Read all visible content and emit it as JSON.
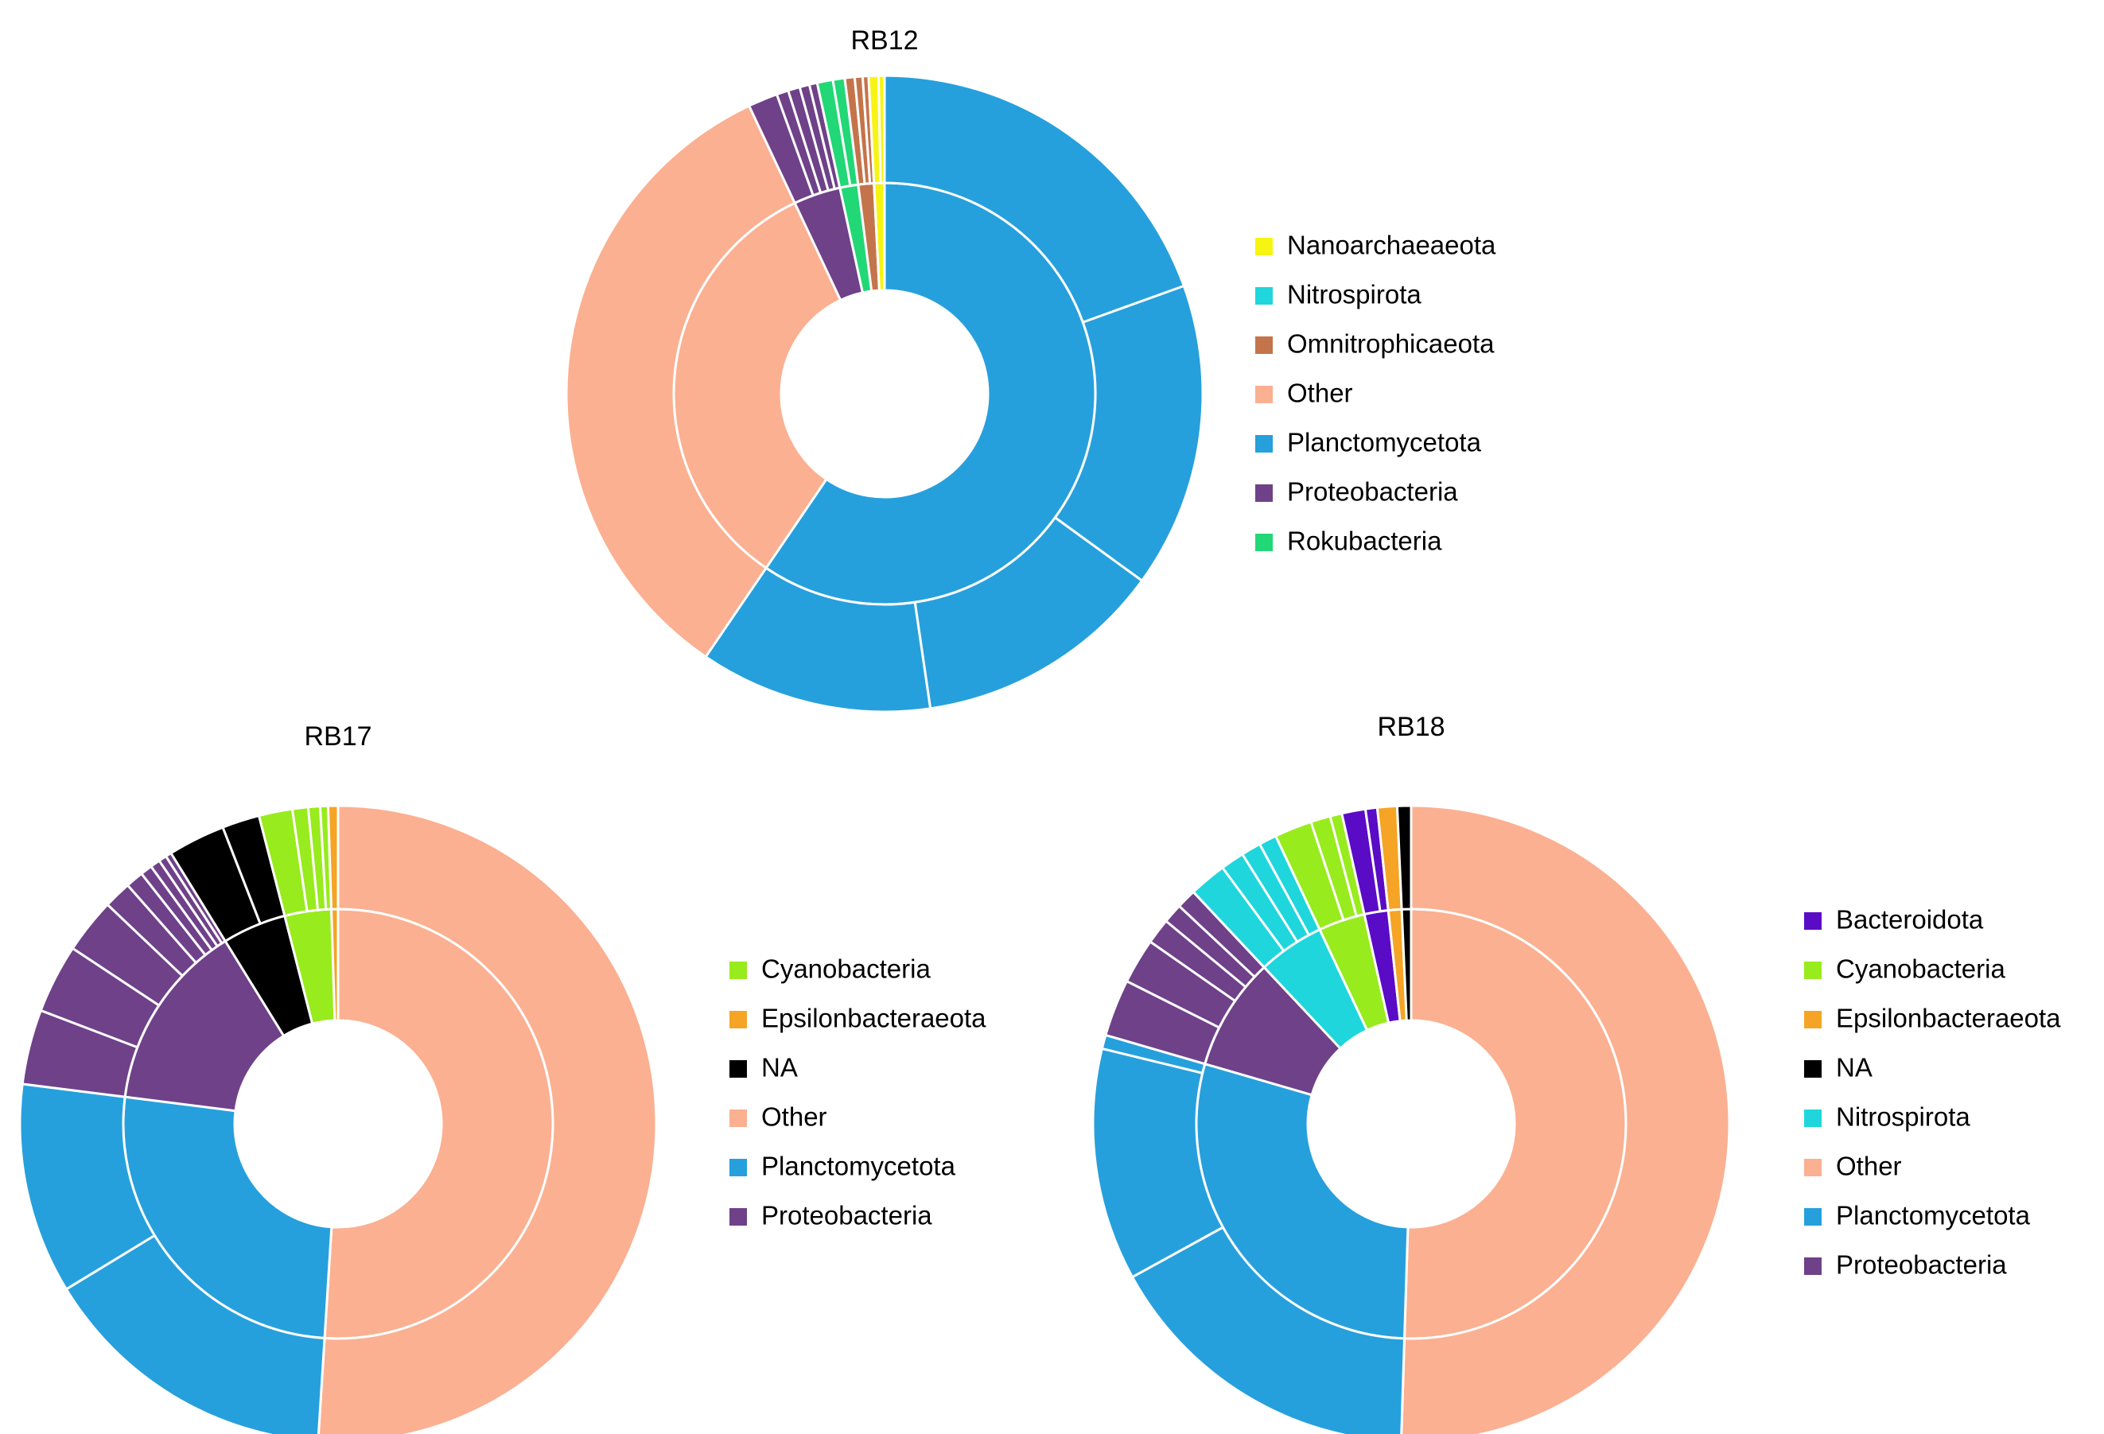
{
  "colors": {
    "Nanoarchaeaeota": "#f7f414",
    "Nitrospirota": "#1fd6dc",
    "Omnitrophicaeota": "#c4744a",
    "Other": "#fbb091",
    "Planctomycetota": "#26a0dc",
    "Proteobacteria": "#6f4189",
    "Rokubacteria": "#22d776",
    "Cyanobacteria": "#98eb1d",
    "Epsilonbacteraeota": "#f5a425",
    "NA": "#000000",
    "Bacteroidota": "#5a0bc6"
  },
  "chart_data": [
    {
      "type": "sunburst",
      "title": "RB12",
      "legend": [
        "Nanoarchaeaeota",
        "Nitrospirota",
        "Omnitrophicaeota",
        "Other",
        "Planctomycetota",
        "Proteobacteria",
        "Rokubacteria"
      ],
      "inner": [
        {
          "group": "Planctomycetota",
          "value": 59.5
        },
        {
          "group": "Other",
          "value": 33.5
        },
        {
          "group": "Proteobacteria",
          "value": 3.6
        },
        {
          "group": "Rokubacteria",
          "value": 1.4
        },
        {
          "group": "Omnitrophicaeota",
          "value": 1.2
        },
        {
          "group": "Nanoarchaeaeota",
          "value": 0.8
        }
      ],
      "outer": [
        {
          "group": "Planctomycetota",
          "value": 19.5
        },
        {
          "group": "Planctomycetota",
          "value": 15.5
        },
        {
          "group": "Planctomycetota",
          "value": 12.7
        },
        {
          "group": "Planctomycetota",
          "value": 11.8
        },
        {
          "group": "Other",
          "value": 33.5
        },
        {
          "group": "Proteobacteria",
          "value": 1.5
        },
        {
          "group": "Proteobacteria",
          "value": 0.6
        },
        {
          "group": "Proteobacteria",
          "value": 0.6
        },
        {
          "group": "Proteobacteria",
          "value": 0.5
        },
        {
          "group": "Proteobacteria",
          "value": 0.4
        },
        {
          "group": "Rokubacteria",
          "value": 0.8
        },
        {
          "group": "Rokubacteria",
          "value": 0.6
        },
        {
          "group": "Omnitrophicaeota",
          "value": 0.5
        },
        {
          "group": "Omnitrophicaeota",
          "value": 0.4
        },
        {
          "group": "Omnitrophicaeota",
          "value": 0.3
        },
        {
          "group": "Nanoarchaeaeota",
          "value": 0.5
        },
        {
          "group": "Nanoarchaeaeota",
          "value": 0.3
        }
      ]
    },
    {
      "type": "sunburst",
      "title": "RB17",
      "legend": [
        "Cyanobacteria",
        "Epsilonbacteraeota",
        "NA",
        "Other",
        "Planctomycetota",
        "Proteobacteria"
      ],
      "inner": [
        {
          "group": "Other",
          "value": 51.0
        },
        {
          "group": "Planctomycetota",
          "value": 26.0
        },
        {
          "group": "Proteobacteria",
          "value": 14.2
        },
        {
          "group": "NA",
          "value": 4.8
        },
        {
          "group": "Cyanobacteria",
          "value": 3.5
        },
        {
          "group": "Epsilonbacteraeota",
          "value": 0.5
        }
      ],
      "outer": [
        {
          "group": "Other",
          "value": 51.0
        },
        {
          "group": "Planctomycetota",
          "value": 15.3
        },
        {
          "group": "Planctomycetota",
          "value": 10.7
        },
        {
          "group": "Proteobacteria",
          "value": 3.8
        },
        {
          "group": "Proteobacteria",
          "value": 3.5
        },
        {
          "group": "Proteobacteria",
          "value": 2.8
        },
        {
          "group": "Proteobacteria",
          "value": 1.4
        },
        {
          "group": "Proteobacteria",
          "value": 0.9
        },
        {
          "group": "Proteobacteria",
          "value": 0.6
        },
        {
          "group": "Proteobacteria",
          "value": 0.5
        },
        {
          "group": "Proteobacteria",
          "value": 0.4
        },
        {
          "group": "Proteobacteria",
          "value": 0.3
        },
        {
          "group": "NA",
          "value": 2.9
        },
        {
          "group": "NA",
          "value": 1.9
        },
        {
          "group": "Cyanobacteria",
          "value": 1.7
        },
        {
          "group": "Cyanobacteria",
          "value": 0.8
        },
        {
          "group": "Cyanobacteria",
          "value": 0.6
        },
        {
          "group": "Cyanobacteria",
          "value": 0.4
        },
        {
          "group": "Epsilonbacteraeota",
          "value": 0.5
        }
      ]
    },
    {
      "type": "sunburst",
      "title": "RB18",
      "legend": [
        "Bacteroidota",
        "Cyanobacteria",
        "Epsilonbacteraeota",
        "NA",
        "Nitrospirota",
        "Other",
        "Planctomycetota",
        "Proteobacteria"
      ],
      "inner": [
        {
          "group": "Other",
          "value": 50.5
        },
        {
          "group": "Planctomycetota",
          "value": 29.0
        },
        {
          "group": "Proteobacteria",
          "value": 8.5
        },
        {
          "group": "Nitrospirota",
          "value": 5.0
        },
        {
          "group": "Cyanobacteria",
          "value": 3.5
        },
        {
          "group": "Bacteroidota",
          "value": 1.8
        },
        {
          "group": "Epsilonbacteraeota",
          "value": 1.0
        },
        {
          "group": "NA",
          "value": 0.7
        }
      ],
      "outer": [
        {
          "group": "Other",
          "value": 50.5
        },
        {
          "group": "Planctomycetota",
          "value": 16.5
        },
        {
          "group": "Planctomycetota",
          "value": 11.8
        },
        {
          "group": "Planctomycetota",
          "value": 0.7
        },
        {
          "group": "Proteobacteria",
          "value": 2.9
        },
        {
          "group": "Proteobacteria",
          "value": 2.3
        },
        {
          "group": "Proteobacteria",
          "value": 1.3
        },
        {
          "group": "Proteobacteria",
          "value": 1.0
        },
        {
          "group": "Proteobacteria",
          "value": 1.0
        },
        {
          "group": "Nitrospirota",
          "value": 1.9
        },
        {
          "group": "Nitrospirota",
          "value": 1.2
        },
        {
          "group": "Nitrospirota",
          "value": 1.0
        },
        {
          "group": "Nitrospirota",
          "value": 0.9
        },
        {
          "group": "Cyanobacteria",
          "value": 1.9
        },
        {
          "group": "Cyanobacteria",
          "value": 1.0
        },
        {
          "group": "Cyanobacteria",
          "value": 0.6
        },
        {
          "group": "Bacteroidota",
          "value": 1.2
        },
        {
          "group": "Bacteroidota",
          "value": 0.6
        },
        {
          "group": "Epsilonbacteraeota",
          "value": 1.0
        },
        {
          "group": "NA",
          "value": 0.7
        }
      ]
    }
  ]
}
